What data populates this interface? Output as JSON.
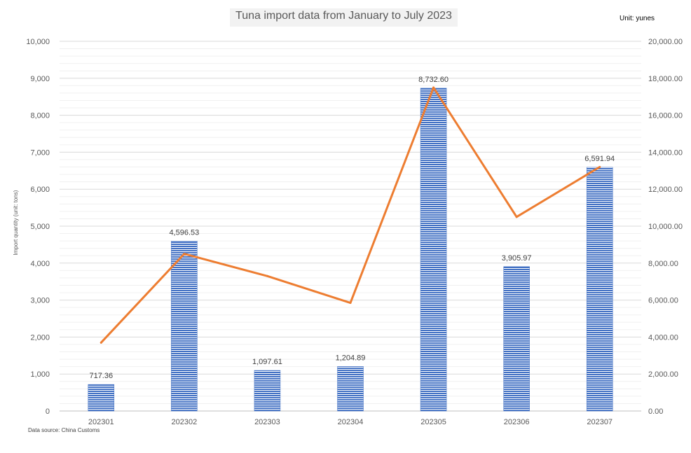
{
  "chart_data": {
    "type": "bar",
    "title": "Tuna import data from January to July 2023",
    "unit_note": "Unit: yunes",
    "source": "Data source: China Customs",
    "ylabel": "Import quantity (unit: tons)",
    "categories": [
      "202301",
      "202302",
      "202303",
      "202304",
      "202305",
      "202306",
      "202307"
    ],
    "series": [
      {
        "kind": "bar",
        "axis": "left",
        "values": [
          717.36,
          4596.53,
          1097.61,
          1204.89,
          8732.6,
          3905.97,
          6591.94
        ],
        "data_labels": [
          "717.36",
          "4,596.53",
          "1,097.61",
          "1,204.89",
          "8,732.60",
          "3,905.97",
          "6,591.94"
        ],
        "color": "#4472c4"
      },
      {
        "kind": "line",
        "axis": "right",
        "values": [
          3700,
          8500,
          7300,
          5850,
          17500,
          10500,
          13200
        ],
        "color": "#ed7d31"
      }
    ],
    "ylim_left": [
      0,
      10000
    ],
    "ylim_right": [
      0,
      20000
    ],
    "left_ticks": [
      "0",
      "1,000",
      "2,000",
      "3,000",
      "4,000",
      "5,000",
      "6,000",
      "7,000",
      "8,000",
      "9,000",
      "10,000"
    ],
    "right_ticks": [
      "0.00",
      "2,000.00",
      "4,000.00",
      "6,000.00",
      "8,000.00",
      "10,000.00",
      "12,000.00",
      "14,000.00",
      "16,000.00",
      "18,000.00",
      "20,000.00"
    ],
    "grid": true,
    "legend": "none"
  }
}
